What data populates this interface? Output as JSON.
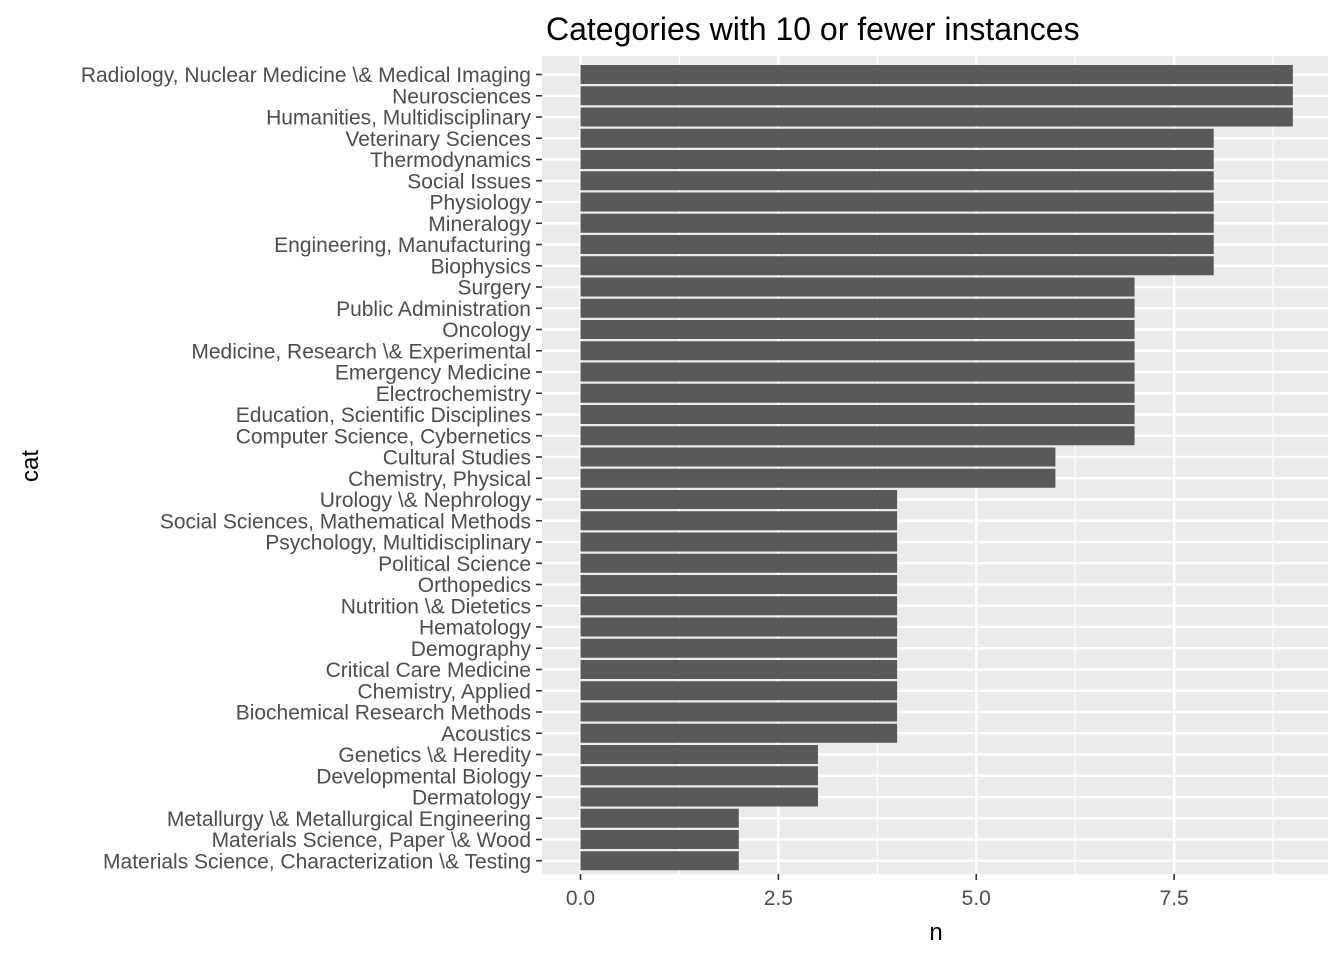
{
  "chart_data": {
    "type": "bar",
    "orientation": "horizontal",
    "title": "Categories with 10 or fewer instances",
    "xlabel": "n",
    "ylabel": "cat",
    "xlim": [
      0,
      9.45
    ],
    "xticks": [
      0,
      2.5,
      5,
      7.5
    ],
    "xtick_labels": [
      "0.0",
      "2.5",
      "5.0",
      "7.5"
    ],
    "grid": true,
    "legend": "none",
    "colors": {
      "bar": "#595959",
      "panel": "#ebebeb",
      "grid": "#ffffff",
      "tick_text": "#4d4d4d"
    },
    "categories": [
      "Radiology, Nuclear Medicine \\& Medical Imaging",
      "Neurosciences",
      "Humanities, Multidisciplinary",
      "Veterinary Sciences",
      "Thermodynamics",
      "Social Issues",
      "Physiology",
      "Mineralogy",
      "Engineering, Manufacturing",
      "Biophysics",
      "Surgery",
      "Public Administration",
      "Oncology",
      "Medicine, Research \\& Experimental",
      "Emergency Medicine",
      "Electrochemistry",
      "Education, Scientific Disciplines",
      "Computer Science, Cybernetics",
      "Cultural Studies",
      "Chemistry, Physical",
      "Urology \\& Nephrology",
      "Social Sciences, Mathematical Methods",
      "Psychology, Multidisciplinary",
      "Political Science",
      "Orthopedics",
      "Nutrition \\& Dietetics",
      "Hematology",
      "Demography",
      "Critical Care Medicine",
      "Chemistry, Applied",
      "Biochemical Research Methods",
      "Acoustics",
      "Genetics \\& Heredity",
      "Developmental Biology",
      "Dermatology",
      "Metallurgy \\& Metallurgical Engineering",
      "Materials Science, Paper \\& Wood",
      "Materials Science, Characterization \\& Testing"
    ],
    "values": [
      9,
      9,
      9,
      8,
      8,
      8,
      8,
      8,
      8,
      8,
      7,
      7,
      7,
      7,
      7,
      7,
      7,
      7,
      6,
      6,
      4,
      4,
      4,
      4,
      4,
      4,
      4,
      4,
      4,
      4,
      4,
      4,
      3,
      3,
      3,
      2,
      2,
      2
    ]
  }
}
